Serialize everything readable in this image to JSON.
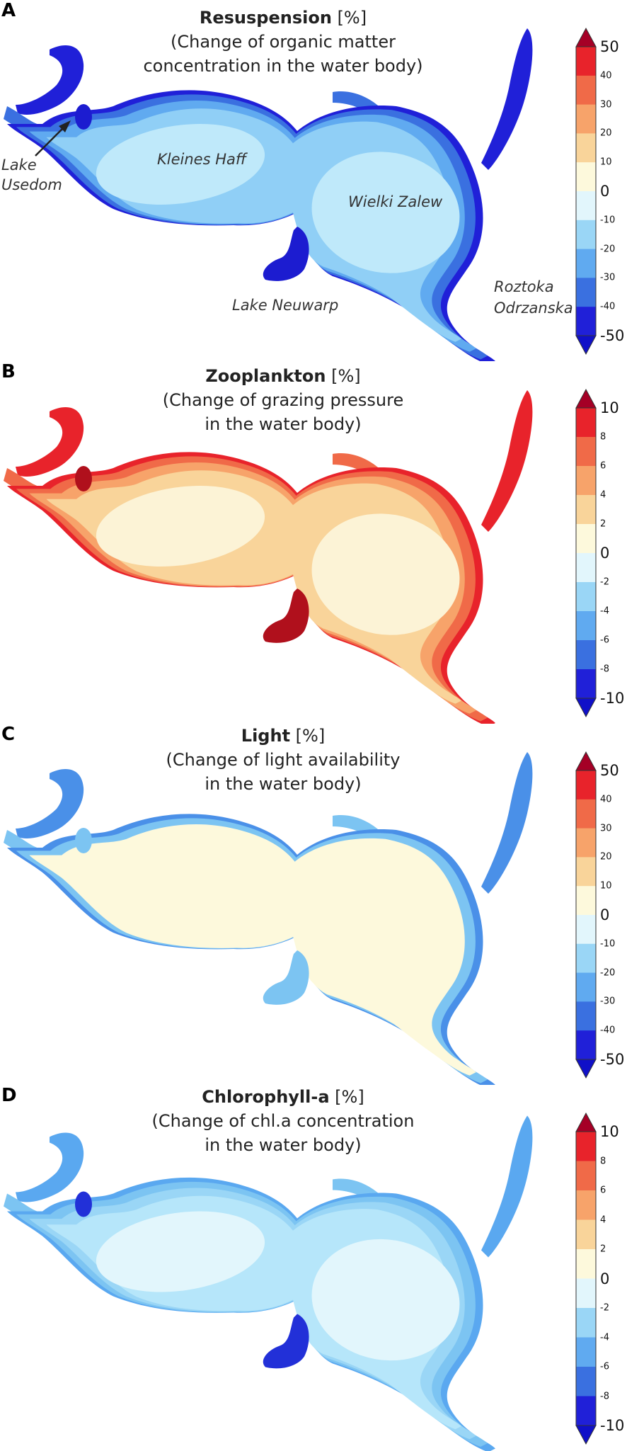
{
  "panels": [
    {
      "letter": "A",
      "title_bold": "Resuspension",
      "title_unit": " [%]",
      "subtitle_1": "(Change of organic matter",
      "subtitle_2": "concentration in the water body)",
      "colorbar": {
        "labels": [
          "50",
          "40",
          "30",
          "20",
          "10",
          "0",
          "-10",
          "-20",
          "-30",
          "-40",
          "-50"
        ],
        "big_labels": [
          "50",
          "0",
          "-50"
        ]
      },
      "colors": {
        "outer": "#2020d8",
        "ring": "#3a70e0",
        "mid": "#60aaf0",
        "inner": "#90cff6",
        "core": "#bfe9fa",
        "isolated": "#1c1cd0"
      },
      "places": {
        "lake_usedom_1": "Lake",
        "lake_usedom_2": "Usedom",
        "kleines_haff": "Kleines Haff",
        "wielki_zalew": "Wielki Zalew",
        "lake_neuwarp": "Lake Neuwarp",
        "roztoka_1": "Roztoka",
        "roztoka_2": "Odrzanska"
      }
    },
    {
      "letter": "B",
      "title_bold": "Zooplankton",
      "title_unit": " [%]",
      "subtitle_1": "(Change of grazing pressure",
      "subtitle_2": "in the water body)",
      "colorbar": {
        "labels": [
          "10",
          "8",
          "6",
          "4",
          "2",
          "0",
          "-2",
          "-4",
          "-6",
          "-8",
          "-10"
        ],
        "big_labels": [
          "10",
          "0",
          "-10"
        ]
      },
      "colors": {
        "outer": "#e8232b",
        "ring": "#f06a48",
        "mid": "#f7a36a",
        "inner": "#f9d49a",
        "core": "#fcf3d6",
        "isolated": "#b0101c"
      }
    },
    {
      "letter": "C",
      "title_bold": "Light",
      "title_unit": " [%]",
      "subtitle_1": "(Change of light availability",
      "subtitle_2": "in the water body)",
      "colorbar": {
        "labels": [
          "50",
          "40",
          "30",
          "20",
          "10",
          "0",
          "-10",
          "-20",
          "-30",
          "-40",
          "-50"
        ],
        "big_labels": [
          "50",
          "0",
          "-50"
        ]
      },
      "colors": {
        "outer": "#4a90e8",
        "ring": "#7cc4f2",
        "mid": "#fdf9dc",
        "inner": "#fdf9dc",
        "core": "#fdf9dc",
        "isolated": "#7cc4f2"
      }
    },
    {
      "letter": "D",
      "title_bold": "Chlorophyll-a",
      "title_unit": " [%]",
      "subtitle_1": "(Change of chl.a concentration",
      "subtitle_2": "in the water body)",
      "colorbar": {
        "labels": [
          "10",
          "8",
          "6",
          "4",
          "2",
          "0",
          "-2",
          "-4",
          "-6",
          "-8",
          "-10"
        ],
        "big_labels": [
          "10",
          "0",
          "-10"
        ]
      },
      "colors": {
        "outer": "#5aa8f0",
        "ring": "#7cc4f2",
        "mid": "#9ad6f6",
        "inner": "#b6e6fa",
        "core": "#e2f6fc",
        "isolated": "#2230d8"
      }
    }
  ],
  "colorbar_colors": [
    "#a50026",
    "#e8232b",
    "#f06a48",
    "#f7a36a",
    "#f9d49a",
    "#fdf9dc",
    "#e2f6fc",
    "#9ad6f6",
    "#60aaf0",
    "#3a70e0",
    "#2020d8",
    "#1010c8"
  ]
}
